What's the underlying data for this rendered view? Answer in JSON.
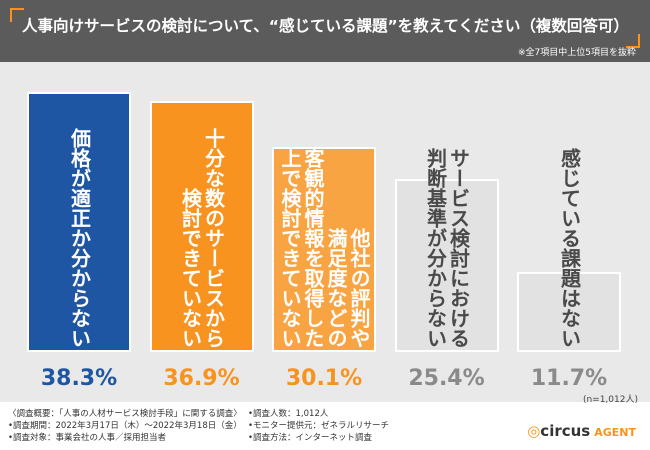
{
  "chart_data": {
    "type": "bar",
    "title": "人事向けサービスの検討について、“感じている課題”を教えてください（複数回答可）",
    "note": "※全7項目中上位5項目を抜粋",
    "sample_note": "(n=1,012人)",
    "categories": [
      [
        "価格が適正か分からない"
      ],
      [
        "十分な数のサービスから",
        "検討できていない"
      ],
      [
        "他社の評判や",
        "満足度などの",
        "客観的情報を取得した",
        "上で検討できていない"
      ],
      [
        "サービス検討における",
        "判断基準が分からない"
      ],
      [
        "感じている課題はない"
      ]
    ],
    "values": [
      38.3,
      36.9,
      30.1,
      25.4,
      11.7
    ],
    "value_labels": [
      "38.3%",
      "36.9%",
      "30.1%",
      "25.4%",
      "11.7%"
    ],
    "colors": [
      "#1f56a3",
      "#f7931e",
      "#f9a443",
      "#e2e2e2",
      "#e2e2e2"
    ],
    "text_colors": [
      "#ffffff",
      "#ffffff",
      "#ffffff",
      "#4a4a4a",
      "#4a4a4a"
    ],
    "value_label_colors": [
      "#1f56a3",
      "#f7931e",
      "#f7931e",
      "#8a8a8a",
      "#8a8a8a"
    ]
  },
  "footer": {
    "left": [
      "〈調査概要：「人事の人材サービス検討手段」に関する調査〉",
      "•調査期間：2022年3月17日（木）〜2022年3月18日（金）",
      "•調査対象：事業会社の人事／採用担当者"
    ],
    "right": [
      "•調査人数：1,012人",
      "•モニター提供元：ゼネラルリサーチ",
      "•調査方法：インターネット調査"
    ]
  },
  "logo": {
    "name": "circus",
    "suffix": "AGENT"
  }
}
